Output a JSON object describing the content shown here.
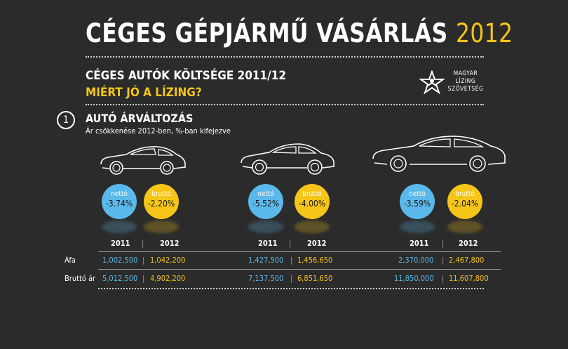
{
  "header": {
    "title_main": "CÉGES GÉPJÁRMŰ VÁSÁRLÁS",
    "title_year": "2012",
    "subtitle": "CÉGES AUTÓK KÖLTSÉGE 2011/12",
    "subtitle2": "MIÉRT JÓ A LÍZING?"
  },
  "logo": {
    "line1": "MAGYAR",
    "line2": "LÍZING",
    "line3": "SZÖVETSÉG",
    "icon": "star-person-icon"
  },
  "section": {
    "number": "1",
    "title": "AUTÓ ÁRVÁLTOZÁS",
    "subtitle": "Ár csökkenése 2012-ben, %-ban kifejezve"
  },
  "colors": {
    "netto": "#5bb8ea",
    "brutto": "#f5c518",
    "background": "#2b2b2b"
  },
  "table": {
    "row_labels": [
      "Áfa",
      "Bruttó ár"
    ],
    "year_labels": [
      "2011",
      "2012"
    ],
    "separator": "|"
  },
  "chart_data": {
    "type": "table",
    "title": "AUTÓ ÁRVÁLTOZÁS",
    "subtitle": "Ár csökkenése 2012-ben, %-ban kifejezve",
    "series_labels": [
      "nettó",
      "bruttó"
    ],
    "cars": [
      {
        "netto_change": "-3.74%",
        "brutto_change": "-2.20%",
        "afa": [
          "1,002,500",
          "1,042,200"
        ],
        "brutto_ar": [
          "5,012,500",
          "4,902,200"
        ]
      },
      {
        "netto_change": "-5.52%",
        "brutto_change": "-4.00%",
        "afa": [
          "1,427,500",
          "1,456,650"
        ],
        "brutto_ar": [
          "7,137,500",
          "6,851,650"
        ]
      },
      {
        "netto_change": "-3.59%",
        "brutto_change": "-2.04%",
        "afa": [
          "2,370,000",
          "2,467,800"
        ],
        "brutto_ar": [
          "11,850,000",
          "11,607,800"
        ]
      }
    ]
  }
}
